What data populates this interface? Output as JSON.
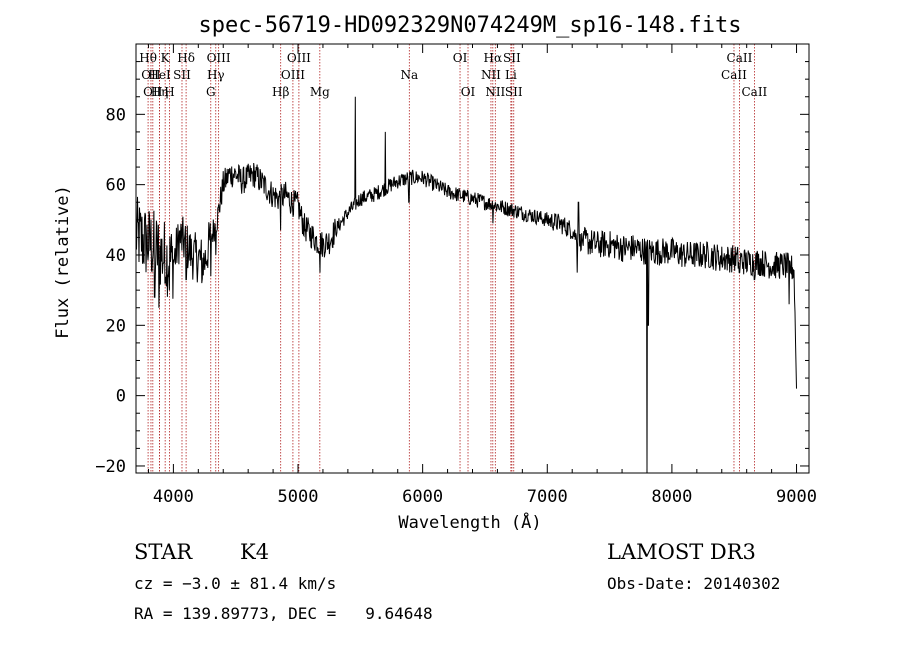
{
  "chart_data": {
    "type": "line",
    "title": "spec-56719-HD092329N074249M_sp16-148.fits",
    "xlabel": "Wavelength (Å)",
    "ylabel": "Flux (relative)",
    "xlim": [
      3700,
      9100
    ],
    "ylim": [
      -22,
      100
    ],
    "xticks": [
      4000,
      5000,
      6000,
      7000,
      8000,
      9000
    ],
    "yticks": [
      -20,
      0,
      20,
      40,
      60,
      80
    ],
    "continuum": {
      "x": [
        3700,
        3760,
        3820,
        3880,
        3950,
        4000,
        4050,
        4100,
        4150,
        4200,
        4250,
        4300,
        4350,
        4400,
        4450,
        4500,
        4550,
        4600,
        4650,
        4700,
        4750,
        4800,
        4850,
        4900,
        4950,
        5000,
        5050,
        5100,
        5150,
        5200,
        5250,
        5300,
        5400,
        5500,
        5600,
        5700,
        5800,
        5900,
        6000,
        6100,
        6200,
        6300,
        6400,
        6500,
        6600,
        6700,
        6800,
        6900,
        7000,
        7100,
        7200,
        7250,
        7300,
        7400,
        7500,
        7600,
        7700,
        7800,
        7900,
        8000,
        8100,
        8200,
        8300,
        8400,
        8500,
        8600,
        8700,
        8800,
        8900,
        8980,
        9000
      ],
      "y": [
        46,
        44,
        43,
        41,
        39,
        38,
        45,
        43,
        40,
        39,
        38,
        45,
        50,
        60,
        63,
        63,
        61,
        62,
        63,
        61,
        59,
        57,
        56,
        57,
        55,
        54,
        48,
        46,
        44,
        43,
        44,
        47,
        52,
        56,
        57,
        59,
        61,
        62,
        62,
        60,
        58,
        57,
        56,
        55,
        54,
        53,
        52,
        51,
        50,
        49,
        47,
        44,
        44,
        43,
        43,
        42,
        42,
        41,
        41,
        41,
        40,
        40,
        40,
        39,
        39,
        38,
        38,
        37,
        37,
        36,
        2
      ]
    },
    "features": [
      {
        "x": 3850,
        "y": 28
      },
      {
        "x": 3885,
        "y": 25
      },
      {
        "x": 3934,
        "y": 32
      },
      {
        "x": 3969,
        "y": 30
      },
      {
        "x": 4102,
        "y": 33
      },
      {
        "x": 4227,
        "y": 32
      },
      {
        "x": 4300,
        "y": 34
      },
      {
        "x": 4340,
        "y": 40
      },
      {
        "x": 4861,
        "y": 47
      },
      {
        "x": 5175,
        "y": 35
      },
      {
        "x": 5460,
        "y": 85
      },
      {
        "x": 5700,
        "y": 75
      },
      {
        "x": 5890,
        "y": 55
      },
      {
        "x": 6563,
        "y": 49
      },
      {
        "x": 7240,
        "y": 35
      },
      {
        "x": 7250,
        "y": 55
      },
      {
        "x": 7800,
        "y": -22
      },
      {
        "x": 7810,
        "y": 20
      },
      {
        "x": 8542,
        "y": 35
      },
      {
        "x": 8662,
        "y": 33
      },
      {
        "x": 8940,
        "y": 26
      }
    ],
    "line_markers": [
      {
        "x": 3797,
        "label": "Hθ",
        "row": 0
      },
      {
        "x": 3820,
        "label": "OII",
        "row": 1
      },
      {
        "x": 3835,
        "label": "OII",
        "row": 2
      },
      {
        "x": 3889,
        "label": "Hη",
        "row": 2
      },
      {
        "x": 3934,
        "label": "K",
        "row": 0
      },
      {
        "x": 3889,
        "label": "HeI",
        "row": 1
      },
      {
        "x": 3969,
        "label": "H",
        "row": 2
      },
      {
        "x": 4069,
        "label": "SII",
        "row": 1
      },
      {
        "x": 4102,
        "label": "Hδ",
        "row": 0
      },
      {
        "x": 4300,
        "label": "G",
        "row": 2
      },
      {
        "x": 4340,
        "label": "Hγ",
        "row": 1
      },
      {
        "x": 4363,
        "label": "OIII",
        "row": 0
      },
      {
        "x": 4861,
        "label": "Hβ",
        "row": 2
      },
      {
        "x": 4959,
        "label": "OIII",
        "row": 1
      },
      {
        "x": 5007,
        "label": "OIII",
        "row": 0
      },
      {
        "x": 5175,
        "label": "Mg",
        "row": 2
      },
      {
        "x": 5893,
        "label": "Na",
        "row": 1
      },
      {
        "x": 6300,
        "label": "OI",
        "row": 0
      },
      {
        "x": 6364,
        "label": "OI",
        "row": 2
      },
      {
        "x": 6548,
        "label": "NII",
        "row": 1
      },
      {
        "x": 6563,
        "label": "Hα",
        "row": 0
      },
      {
        "x": 6583,
        "label": "NII",
        "row": 2
      },
      {
        "x": 6708,
        "label": "Li",
        "row": 1
      },
      {
        "x": 6716,
        "label": "SII",
        "row": 0
      },
      {
        "x": 6731,
        "label": "SII",
        "row": 2
      },
      {
        "x": 8498,
        "label": "CaII",
        "row": 1
      },
      {
        "x": 8542,
        "label": "CaII",
        "row": 0
      },
      {
        "x": 8662,
        "label": "CaII",
        "row": 2
      }
    ]
  },
  "info": {
    "object_class": "STAR",
    "subclass": "K4",
    "survey": "LAMOST DR3",
    "cz": "cz = −3.0 ± 81.4 km/s",
    "obs_date": "Obs-Date: 20140302",
    "radec": "RA = 139.89773, DEC =   9.64648"
  },
  "colors": {
    "axis": "#000000",
    "spectrum": "#000000",
    "line_marker": "#b22222"
  }
}
